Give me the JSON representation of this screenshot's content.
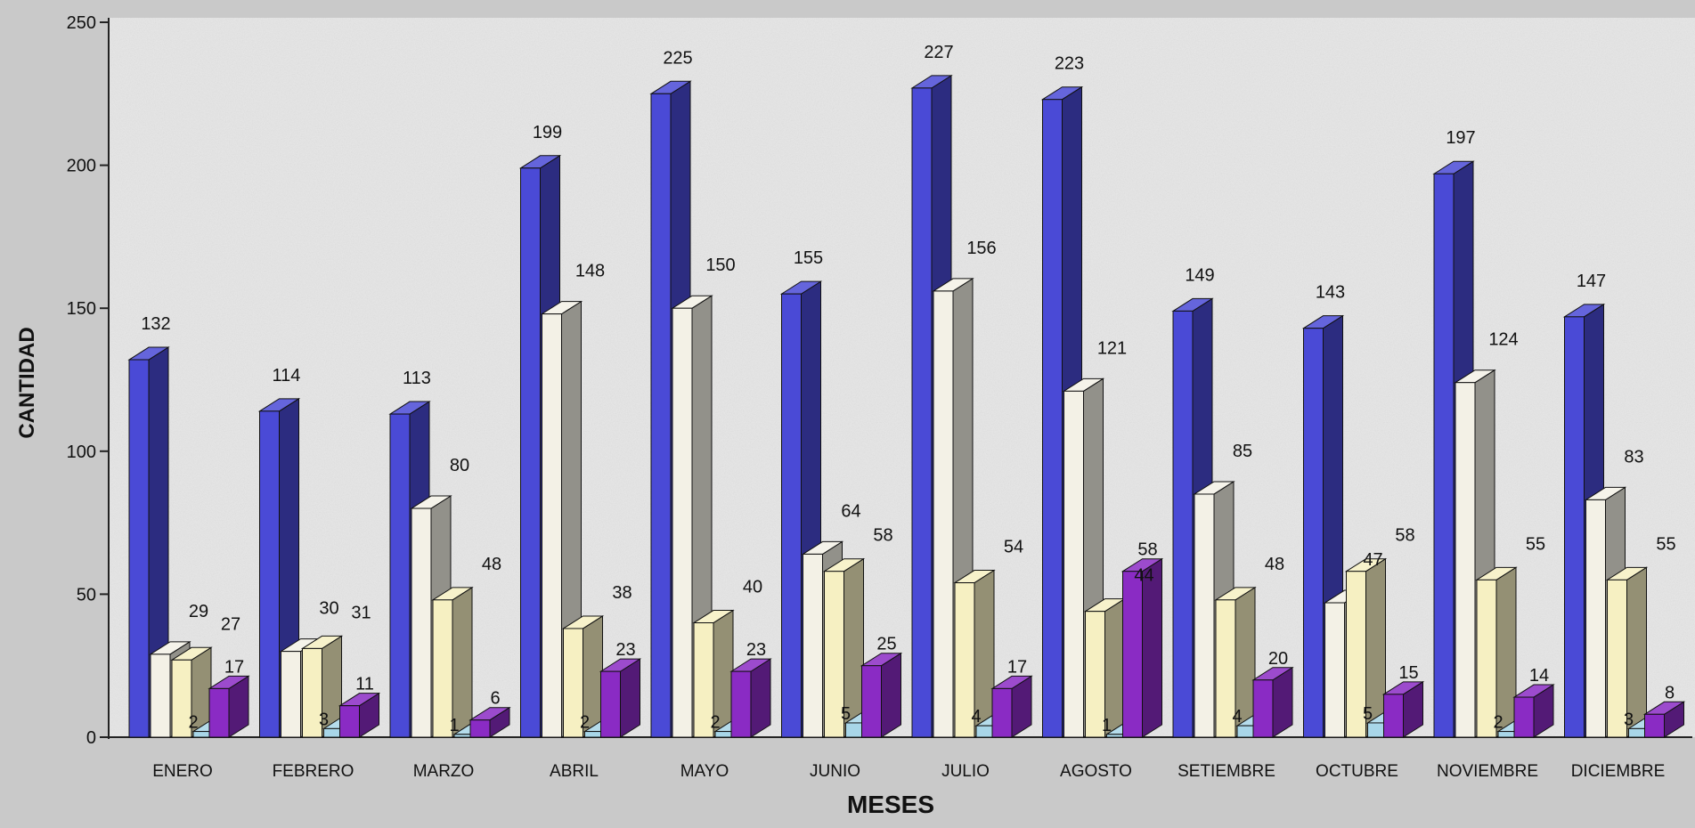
{
  "chart_data": {
    "type": "bar",
    "xlabel": "MESES",
    "ylabel": "CANTIDAD",
    "ylim": [
      0,
      250
    ],
    "yticks": [
      0,
      50,
      100,
      150,
      200,
      250
    ],
    "grid": false,
    "legend": "none",
    "categories": [
      "ENERO",
      "FEBRERO",
      "MARZO",
      "ABRIL",
      "MAYO",
      "JUNIO",
      "JULIO",
      "AGOSTO",
      "SETIEMBRE",
      "OCTUBRE",
      "NOVIEMBRE",
      "DICIEMBRE"
    ],
    "series": [
      {
        "color": "#4a4ad6",
        "values": [
          132,
          114,
          113,
          199,
          225,
          155,
          227,
          223,
          149,
          143,
          197,
          147
        ]
      },
      {
        "color": "#f3f1e6",
        "values": [
          29,
          30,
          80,
          148,
          150,
          64,
          156,
          121,
          85,
          47,
          124,
          83
        ]
      },
      {
        "color": "#f6f0c2",
        "values": [
          27,
          31,
          48,
          38,
          40,
          58,
          54,
          44,
          48,
          58,
          55,
          55
        ]
      },
      {
        "color": "#a8d6e8",
        "values": [
          2,
          3,
          1,
          2,
          2,
          5,
          4,
          1,
          4,
          5,
          2,
          3
        ]
      },
      {
        "color": "#8a2bc4",
        "values": [
          17,
          11,
          6,
          23,
          23,
          25,
          17,
          58,
          20,
          15,
          14,
          8
        ]
      }
    ]
  }
}
